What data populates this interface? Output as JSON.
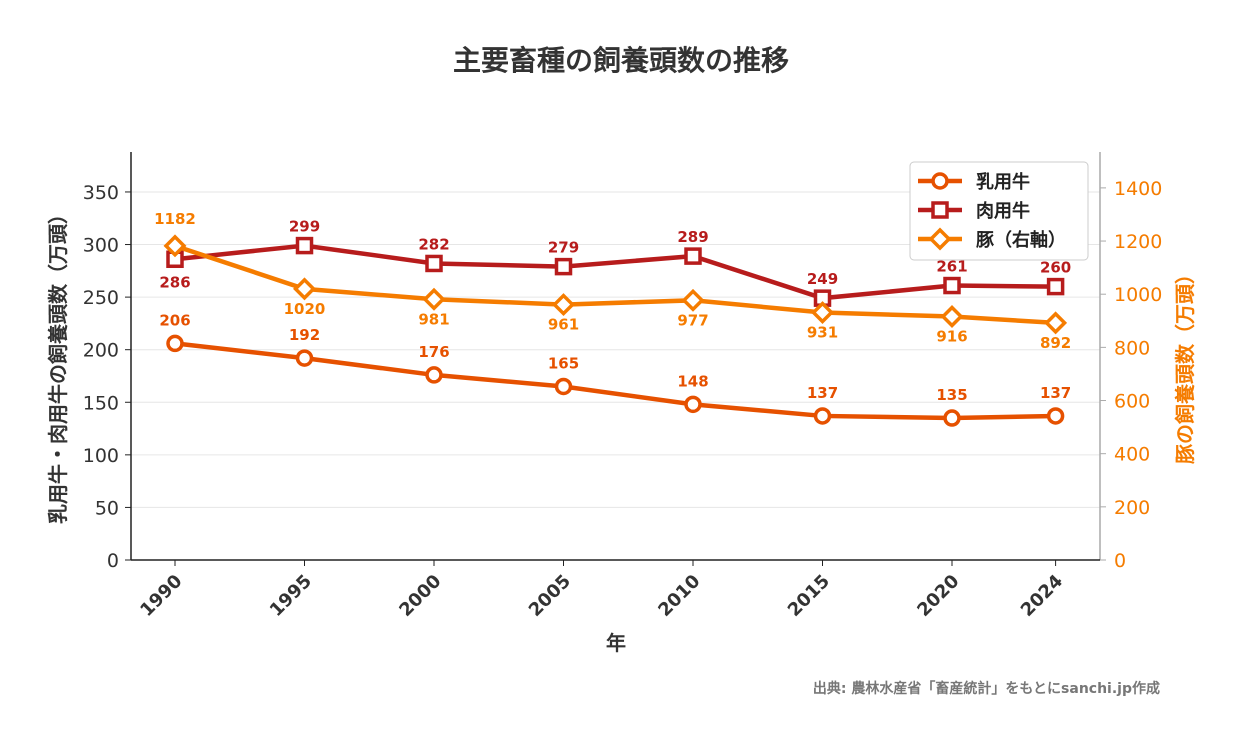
{
  "chart_data": {
    "type": "line",
    "title": "主要畜種の飼養頭数の推移",
    "xlabel": "年",
    "ylabel": "乳用牛・肉用牛の飼養頭数（万頭）",
    "y2label": "豚の飼養頭数（万頭）",
    "x": [
      1990,
      1995,
      2000,
      2005,
      2010,
      2015,
      2020,
      2024
    ],
    "ylim": [
      0,
      388
    ],
    "y2lim": [
      0,
      1535
    ],
    "yticks": [
      0,
      50,
      100,
      150,
      200,
      250,
      300,
      350
    ],
    "y2ticks": [
      0,
      200,
      400,
      600,
      800,
      1000,
      1200,
      1400
    ],
    "grid": true,
    "legend": "top-right",
    "series": [
      {
        "name": "乳用牛",
        "axis": "left",
        "marker": "circle",
        "color": "#e65100",
        "values": [
          206,
          192,
          176,
          165,
          148,
          137,
          135,
          137
        ]
      },
      {
        "name": "肉用牛",
        "axis": "left",
        "marker": "square",
        "color": "#b71c1c",
        "values": [
          286,
          299,
          282,
          279,
          289,
          249,
          261,
          260
        ]
      },
      {
        "name": "豚（右軸）",
        "axis": "right",
        "marker": "diamond",
        "color": "#f57c00",
        "values": [
          1182,
          1020,
          981,
          961,
          977,
          931,
          916,
          892
        ]
      }
    ],
    "source": "出典: 農林水産省「畜産統計」をもとにsanchi.jp作成"
  }
}
